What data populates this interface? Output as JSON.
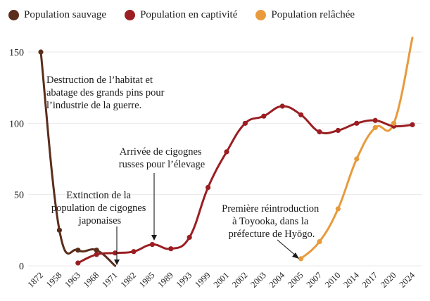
{
  "legend": {
    "wild": "Population sauvage",
    "captive": "Population en captivité",
    "released": "Population relâchée"
  },
  "colors": {
    "wild": "#5b2d1c",
    "captive": "#9a1e22",
    "released": "#e89a3c",
    "grid": "#e9e9e9"
  },
  "annotations": {
    "habitat": [
      "Destruction de l’habitat et",
      "abatage des grands pins pour",
      "l’industrie de la guerre."
    ],
    "extinction": [
      "Extinction de la",
      "population de cigognes",
      "japonaises"
    ],
    "russian": [
      "Arrivée de cigognes",
      "russes pour l’élevage"
    ],
    "reintro": [
      "Première réintroduction",
      "à Toyooka, dans la",
      "préfecture de Hyōgo."
    ]
  },
  "chart_data": {
    "type": "line",
    "categories": [
      "1872",
      "1958",
      "1963",
      "1968",
      "1971",
      "1982",
      "1985",
      "1989",
      "1993",
      "1999",
      "2001",
      "2002",
      "2003",
      "2004",
      "2005",
      "2007",
      "2010",
      "2014",
      "2017",
      "2020",
      "2024"
    ],
    "ylim": [
      0,
      160
    ],
    "yticks": [
      0,
      50,
      100,
      150
    ],
    "grid": true,
    "legend_position": "top",
    "series": [
      {
        "name": "Population sauvage",
        "color": "#5b2d1c",
        "points": [
          [
            "1872",
            150
          ],
          [
            "1958",
            25
          ],
          [
            "1963",
            11
          ],
          [
            "1968",
            11
          ],
          [
            "1971",
            0
          ]
        ]
      },
      {
        "name": "Population en captivité",
        "color": "#9a1e22",
        "points": [
          [
            "1963",
            2
          ],
          [
            "1968",
            8
          ],
          [
            "1971",
            9
          ],
          [
            "1982",
            10
          ],
          [
            "1985",
            15
          ],
          [
            "1989",
            12
          ],
          [
            "1993",
            20
          ],
          [
            "1999",
            55
          ],
          [
            "2001",
            80
          ],
          [
            "2002",
            100
          ],
          [
            "2003",
            105
          ],
          [
            "2004",
            112
          ],
          [
            "2005",
            106
          ],
          [
            "2007",
            94
          ],
          [
            "2010",
            95
          ],
          [
            "2014",
            100
          ],
          [
            "2017",
            102
          ],
          [
            "2020",
            98
          ],
          [
            "2024",
            99
          ]
        ]
      },
      {
        "name": "Population relâchée",
        "color": "#e89a3c",
        "points": [
          [
            "2005",
            5
          ],
          [
            "2007",
            17
          ],
          [
            "2010",
            40
          ],
          [
            "2014",
            75
          ],
          [
            "2017",
            97
          ],
          [
            "2020",
            100
          ],
          [
            "2024",
            160
          ]
        ]
      }
    ]
  }
}
